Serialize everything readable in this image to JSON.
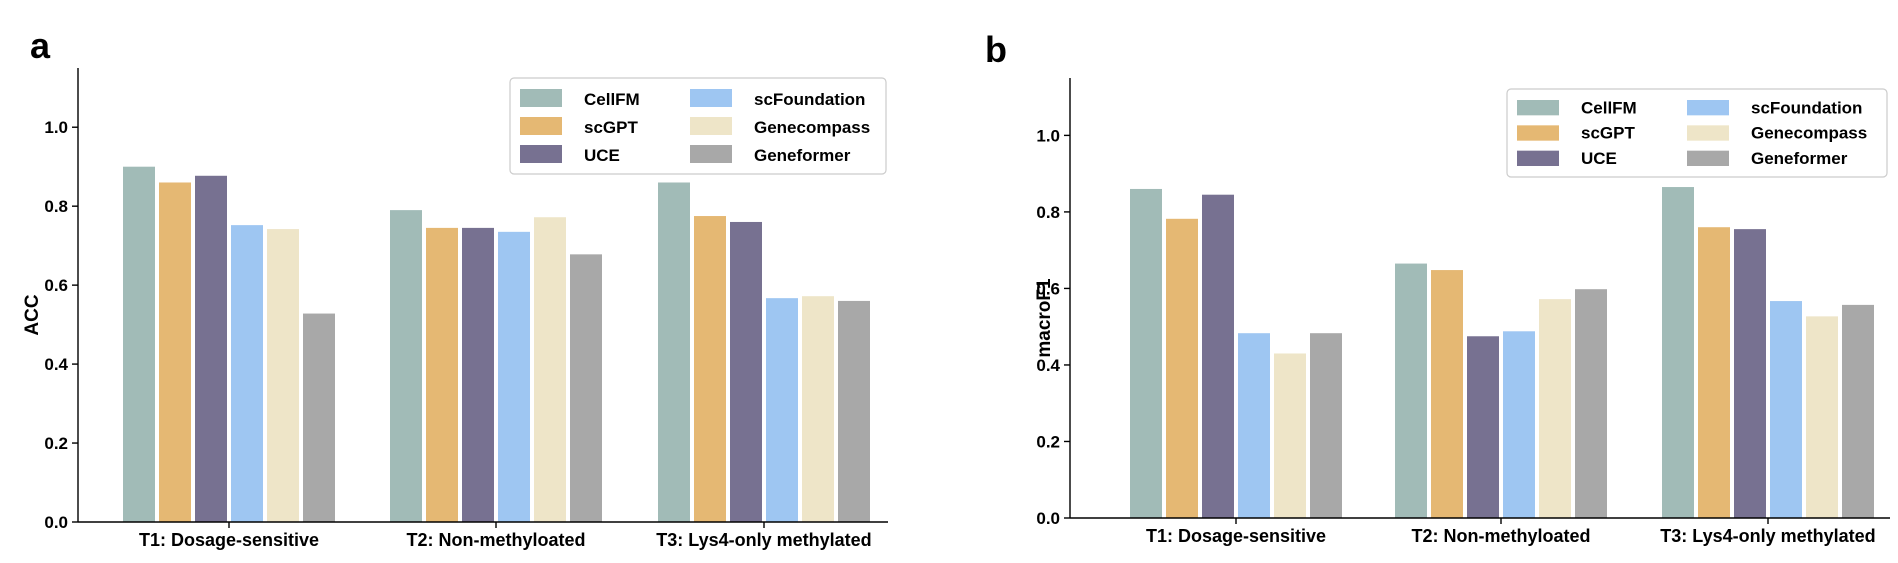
{
  "colors": {
    "CellFM": "#a1bbb7",
    "scGPT": "#e5b873",
    "UCE": "#777191",
    "scFoundation": "#9ec6f2",
    "Genecompass": "#eee5c8",
    "Geneformer": "#a8a8a8"
  },
  "chart_data": [
    {
      "type": "bar",
      "panel": "a",
      "title": "",
      "xlabel": "",
      "ylabel": "ACC",
      "ylim": [
        0,
        1.15
      ],
      "yticks": [
        "0.0",
        "0.2",
        "0.4",
        "0.6",
        "0.8",
        "1.0"
      ],
      "categories": [
        "T1: Dosage-sensitive",
        "T2: Non-methyloated",
        "T3: Lys4-only methylated"
      ],
      "legend_position": "top-right",
      "series": [
        {
          "name": "CellFM",
          "values": [
            0.9,
            0.79,
            0.86
          ]
        },
        {
          "name": "scGPT",
          "values": [
            0.86,
            0.745,
            0.775
          ]
        },
        {
          "name": "UCE",
          "values": [
            0.877,
            0.745,
            0.76
          ]
        },
        {
          "name": "scFoundation",
          "values": [
            0.752,
            0.735,
            0.567
          ]
        },
        {
          "name": "Genecompass",
          "values": [
            0.742,
            0.772,
            0.572
          ]
        },
        {
          "name": "Geneformer",
          "values": [
            0.528,
            0.678,
            0.56
          ]
        }
      ]
    },
    {
      "type": "bar",
      "panel": "b",
      "title": "",
      "xlabel": "",
      "ylabel": "macroF1",
      "ylim": [
        0,
        1.15
      ],
      "yticks": [
        "0.0",
        "0.2",
        "0.4",
        "0.6",
        "0.8",
        "1.0"
      ],
      "categories": [
        "T1: Dosage-sensitive",
        "T2: Non-methyloated",
        "T3: Lys4-only methylated"
      ],
      "legend_position": "top-right",
      "series": [
        {
          "name": "CellFM",
          "values": [
            0.86,
            0.665,
            0.865
          ]
        },
        {
          "name": "scGPT",
          "values": [
            0.782,
            0.648,
            0.76
          ]
        },
        {
          "name": "UCE",
          "values": [
            0.845,
            0.475,
            0.755
          ]
        },
        {
          "name": "scFoundation",
          "values": [
            0.483,
            0.488,
            0.567
          ]
        },
        {
          "name": "Genecompass",
          "values": [
            0.43,
            0.572,
            0.527
          ]
        },
        {
          "name": "Geneformer",
          "values": [
            0.483,
            0.598,
            0.557
          ]
        }
      ]
    }
  ]
}
